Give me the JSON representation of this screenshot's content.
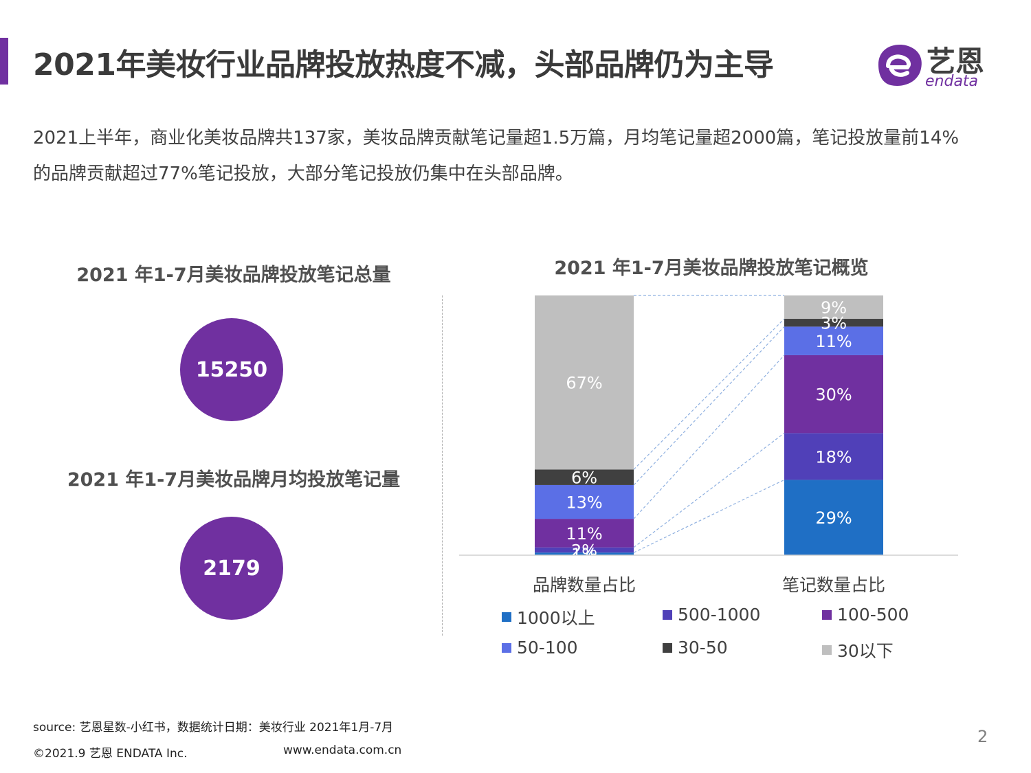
{
  "header": {
    "title": "2021年美妆行业品牌投放热度不减，头部品牌仍为主导",
    "logo_text": "艺恩",
    "logo_sub": "endata"
  },
  "intro": "2021上半年，商业化美妆品牌共137家，美妆品牌贡献笔记量超1.5万篇，月均笔记量超2000篇，笔记投放量前14%的品牌贡献超过77%笔记投放，大部分笔记投放仍集中在头部品牌。",
  "left_panel": {
    "total_title": "2021 年1-7月美妆品牌投放笔记总量",
    "total_value": "15250",
    "monthly_title": "2021 年1-7月美妆品牌月均投放笔记量",
    "monthly_value": "2179"
  },
  "chart_data": {
    "type": "bar",
    "stacked": true,
    "title": "2021 年1-7月美妆品牌投放笔记概览",
    "categories": [
      "品牌数量占比",
      "笔记数量占比"
    ],
    "ylim": [
      0,
      100
    ],
    "series": [
      {
        "name": "1000以上",
        "values": [
          1,
          29
        ],
        "labels": [
          "1%",
          "29%"
        ],
        "color": "#1f6fc5"
      },
      {
        "name": "500-1000",
        "values": [
          2,
          18
        ],
        "labels": [
          "2%",
          "18%"
        ],
        "color": "#5040b8"
      },
      {
        "name": "100-500",
        "values": [
          11,
          30
        ],
        "labels": [
          "11%",
          "30%"
        ],
        "color": "#7030a0"
      },
      {
        "name": "50-100",
        "values": [
          13,
          11
        ],
        "labels": [
          "13%",
          "11%"
        ],
        "color": "#5b6fe6"
      },
      {
        "name": "30-50",
        "values": [
          6,
          3
        ],
        "labels": [
          "6%",
          "3%"
        ],
        "color": "#404040"
      },
      {
        "name": "30以下",
        "values": [
          67,
          9
        ],
        "labels": [
          "67%",
          "9%"
        ],
        "color": "#bfbfbf"
      }
    ]
  },
  "footer": {
    "source": "source: 艺恩星数-小红书，数据统计日期：美妆行业 2021年1月-7月",
    "copyright": "©2021.9 艺恩 ENDATA Inc.",
    "website": "www.endata.com.cn",
    "page": "2"
  }
}
